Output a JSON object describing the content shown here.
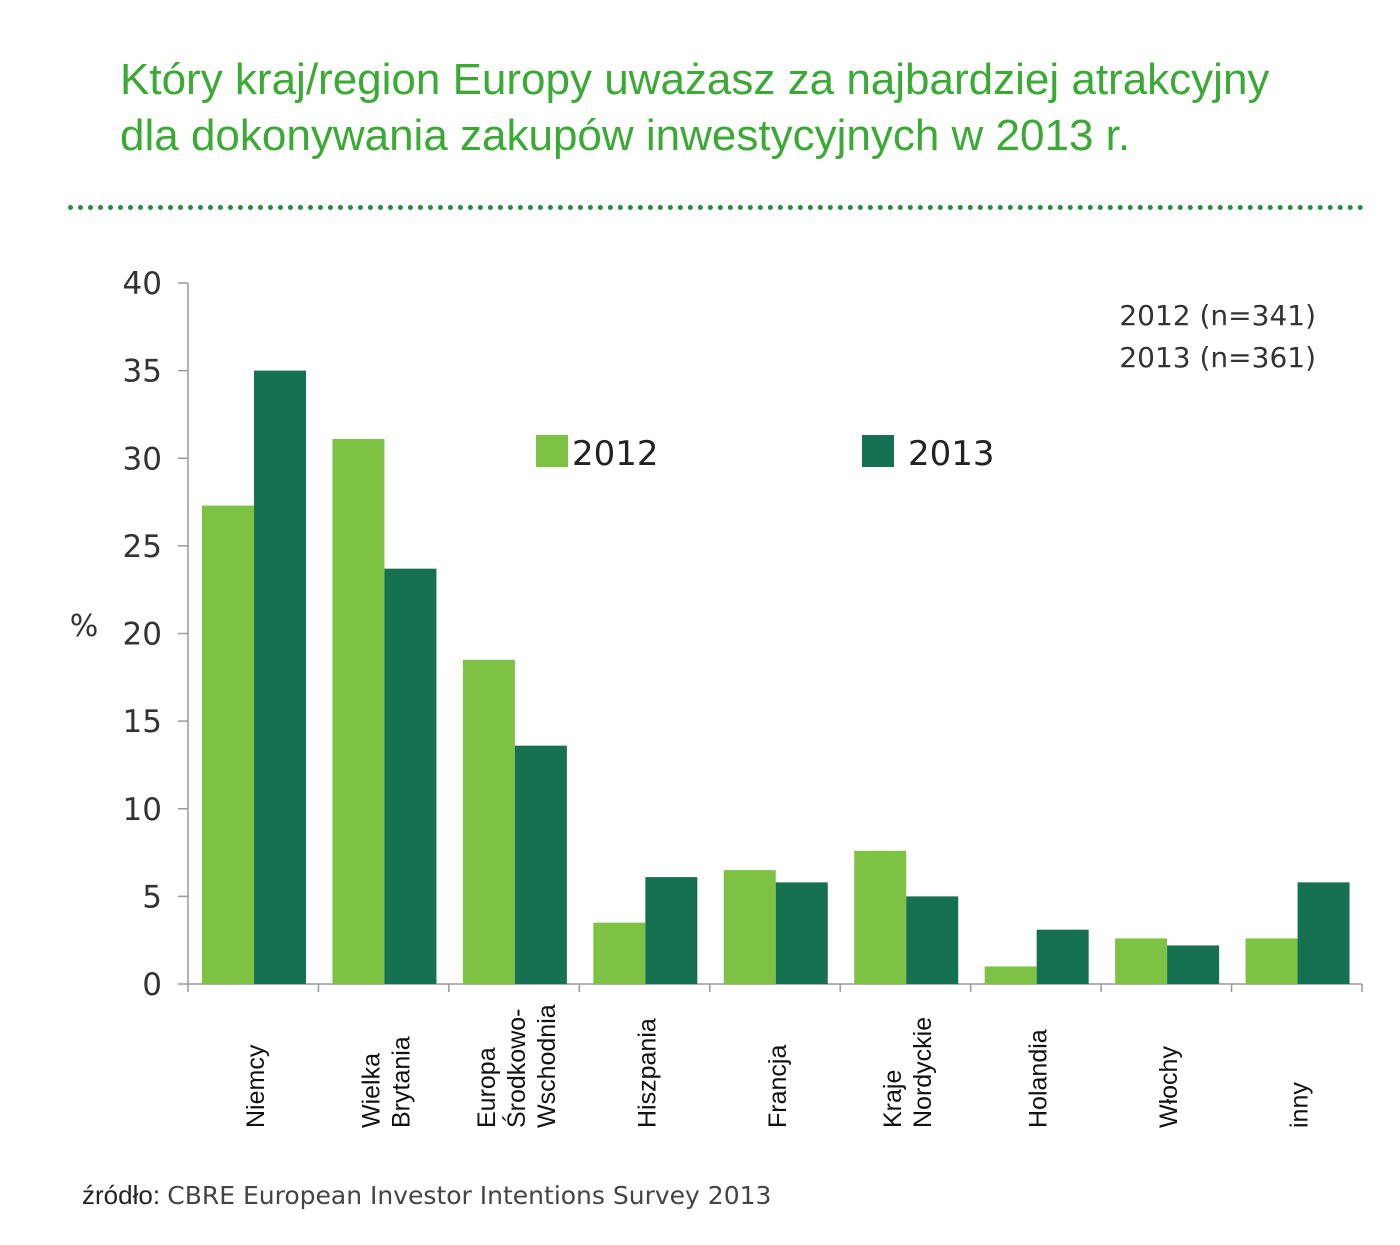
{
  "chart_data": {
    "type": "bar",
    "title_lines": [
      "Który kraj/region Europy uważasz za najbardziej atrakcyjny",
      "dla dokonywania zakupów inwestycyjnych w 2013 r."
    ],
    "ylabel": "%",
    "xlabel": "",
    "ylim": [
      0,
      40
    ],
    "yticks": [
      0,
      5,
      10,
      15,
      20,
      25,
      30,
      35,
      40
    ],
    "grid": false,
    "legend_position": "top-center",
    "categories": [
      [
        "Niemcy"
      ],
      [
        "Wielka",
        "Brytania"
      ],
      [
        "Europa",
        "Środkowo-",
        "Wschodnia"
      ],
      [
        "Hiszpania"
      ],
      [
        "Francja"
      ],
      [
        "Kraje",
        "Nordyckie"
      ],
      [
        "Holandia"
      ],
      [
        "Włochy"
      ],
      [
        "inny"
      ]
    ],
    "series": [
      {
        "name": "2012",
        "color": "#7dc242",
        "values": [
          27.3,
          31.1,
          18.5,
          3.5,
          6.5,
          7.6,
          1.0,
          2.6,
          2.6
        ]
      },
      {
        "name": "2013",
        "color": "#167052",
        "values": [
          35.0,
          23.7,
          13.6,
          6.1,
          5.8,
          5.0,
          3.1,
          2.2,
          5.8
        ]
      }
    ],
    "annotations": [
      "2012 (n=341)",
      "2013 (n=361)"
    ]
  },
  "source": {
    "label": "źródło:",
    "text": "CBRE European Investor Intentions Survey 2013"
  },
  "colors": {
    "title": "#3aaa35",
    "divider": "#2a8a4a"
  }
}
